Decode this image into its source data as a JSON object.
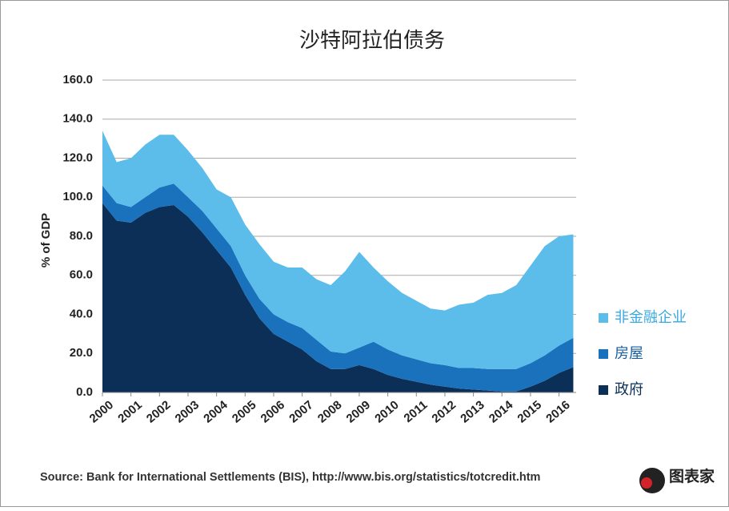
{
  "chart_data": {
    "type": "stacked_area",
    "title": "沙特阿拉伯债务",
    "y_label": "% of GDP",
    "source": "Source: Bank for International Settlements (BIS), http://www.bis.org/statistics/totcredit.htm",
    "logo": "图表家",
    "x": [
      2000,
      2000.5,
      2001,
      2001.5,
      2002,
      2002.5,
      2003,
      2003.5,
      2004,
      2004.5,
      2005,
      2005.5,
      2006,
      2006.5,
      2007,
      2007.5,
      2008,
      2008.5,
      2009,
      2009.5,
      2010,
      2010.5,
      2011,
      2011.5,
      2012,
      2012.5,
      2013,
      2013.5,
      2014,
      2014.5,
      2015,
      2015.5,
      2016,
      2016.5
    ],
    "xlim": [
      2000,
      2016.6
    ],
    "xticks": [
      2000,
      2001,
      2002,
      2003,
      2004,
      2005,
      2006,
      2007,
      2008,
      2009,
      2010,
      2011,
      2012,
      2013,
      2014,
      2015,
      2016
    ],
    "ylim": [
      0,
      160
    ],
    "yticks": [
      {
        "value": 0,
        "label": "0.0"
      },
      {
        "value": 20,
        "label": "20.0"
      },
      {
        "value": 40,
        "label": "40.0"
      },
      {
        "value": 60,
        "label": "60.0"
      },
      {
        "value": 80,
        "label": "80.0"
      },
      {
        "value": 100,
        "label": "100.0"
      },
      {
        "value": 120,
        "label": "120.0"
      },
      {
        "value": 140,
        "label": "140.0"
      },
      {
        "value": 160,
        "label": "160.0"
      }
    ],
    "grid": true,
    "series": [
      {
        "name": "政府",
        "color": "#0b2f57",
        "values": [
          97,
          88,
          87,
          92,
          95,
          96,
          90,
          82,
          73,
          64,
          50,
          38,
          30,
          26,
          22,
          16,
          12,
          12,
          14,
          12,
          9,
          7,
          5.5,
          4,
          3,
          2,
          1.5,
          1,
          0.5,
          0.5,
          3,
          6,
          10,
          13
        ]
      },
      {
        "name": "房屋",
        "color": "#1a72bd",
        "values": [
          9,
          9,
          8,
          8,
          10,
          11,
          10,
          11,
          11,
          11,
          10,
          10,
          10,
          10,
          11,
          11,
          9,
          8,
          9,
          14,
          13,
          12,
          11.5,
          11,
          11,
          10.5,
          11,
          11,
          11.5,
          11.5,
          12,
          13,
          14,
          15
        ]
      },
      {
        "name": "非金融企业",
        "color": "#5cbcea",
        "values": [
          28,
          21,
          25,
          27,
          27,
          25,
          24,
          22,
          20,
          25,
          26,
          28,
          27,
          28,
          31,
          31,
          34,
          42,
          49,
          38,
          35,
          32,
          30,
          28,
          28,
          32.5,
          33.5,
          38,
          39,
          43,
          50,
          56,
          56,
          53
        ]
      }
    ]
  }
}
